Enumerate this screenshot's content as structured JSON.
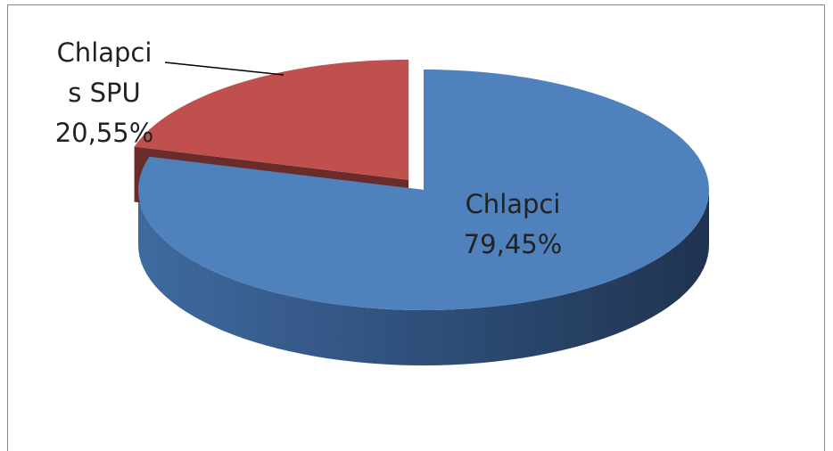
{
  "chart_data": {
    "type": "pie3d",
    "categories": [
      "Chlapci",
      "Chlapci s SPU"
    ],
    "values": [
      79.45,
      20.55
    ],
    "value_labels": [
      "79,45%",
      "20,55%"
    ],
    "colors": [
      "#4f81bd",
      "#c0504d"
    ],
    "exploded": [
      false,
      true
    ]
  }
}
